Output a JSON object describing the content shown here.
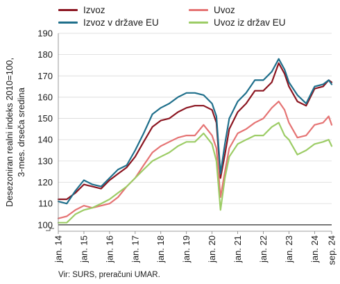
{
  "source": "Vir: SURS, preračuni UMAR.",
  "chart_data": {
    "type": "line",
    "ylabel_lines": [
      "Desezoniran realni indeks 2010=100,",
      "3-mes. drseča sredina"
    ],
    "ylim": [
      97,
      190
    ],
    "yticks": [
      100,
      110,
      120,
      130,
      140,
      150,
      160,
      170,
      180,
      190
    ],
    "y_axis_break": true,
    "reference_line": 100,
    "grid": true,
    "legend": "top, two columns",
    "x_labels": [
      {
        "t": 2014.0,
        "label": "jan. 14"
      },
      {
        "t": 2015.0,
        "label": "jan. 15"
      },
      {
        "t": 2016.0,
        "label": "jan. 16"
      },
      {
        "t": 2017.0,
        "label": "jan. 17"
      },
      {
        "t": 2018.0,
        "label": "jan. 18"
      },
      {
        "t": 2019.0,
        "label": "jan. 19"
      },
      {
        "t": 2020.0,
        "label": "jan. 20"
      },
      {
        "t": 2021.0,
        "label": "jan. 21"
      },
      {
        "t": 2022.0,
        "label": "jan. 22"
      },
      {
        "t": 2023.0,
        "label": "jan. 23"
      },
      {
        "t": 2024.0,
        "label": "jan. 24"
      },
      {
        "t": 2024.667,
        "label": "sep. 24"
      }
    ],
    "xlim": [
      2014.0,
      2024.667
    ],
    "series": [
      {
        "name": "Izvoz",
        "color": "#8b1520",
        "points": [
          [
            2014.0,
            112
          ],
          [
            2014.33,
            112
          ],
          [
            2014.67,
            115
          ],
          [
            2015.0,
            119
          ],
          [
            2015.33,
            118
          ],
          [
            2015.67,
            117
          ],
          [
            2016.0,
            121
          ],
          [
            2016.33,
            124
          ],
          [
            2016.67,
            127
          ],
          [
            2017.0,
            132
          ],
          [
            2017.33,
            139
          ],
          [
            2017.67,
            146
          ],
          [
            2018.0,
            149
          ],
          [
            2018.33,
            150
          ],
          [
            2018.67,
            153
          ],
          [
            2019.0,
            155
          ],
          [
            2019.33,
            156
          ],
          [
            2019.67,
            156
          ],
          [
            2020.0,
            154
          ],
          [
            2020.17,
            148
          ],
          [
            2020.33,
            122
          ],
          [
            2020.5,
            133
          ],
          [
            2020.67,
            145
          ],
          [
            2021.0,
            153
          ],
          [
            2021.33,
            157
          ],
          [
            2021.67,
            163
          ],
          [
            2022.0,
            163
          ],
          [
            2022.33,
            167
          ],
          [
            2022.6,
            176
          ],
          [
            2022.83,
            171
          ],
          [
            2023.0,
            165
          ],
          [
            2023.33,
            158
          ],
          [
            2023.67,
            156
          ],
          [
            2024.0,
            164
          ],
          [
            2024.33,
            165
          ],
          [
            2024.55,
            168
          ],
          [
            2024.667,
            167
          ]
        ]
      },
      {
        "name": "Uvoz",
        "color": "#e57373",
        "points": [
          [
            2014.0,
            103
          ],
          [
            2014.33,
            104
          ],
          [
            2014.67,
            107
          ],
          [
            2015.0,
            109
          ],
          [
            2015.33,
            108
          ],
          [
            2015.67,
            109
          ],
          [
            2016.0,
            110
          ],
          [
            2016.33,
            113
          ],
          [
            2016.67,
            118
          ],
          [
            2017.0,
            122
          ],
          [
            2017.33,
            128
          ],
          [
            2017.67,
            134
          ],
          [
            2018.0,
            137
          ],
          [
            2018.33,
            139
          ],
          [
            2018.67,
            141
          ],
          [
            2019.0,
            142
          ],
          [
            2019.33,
            142
          ],
          [
            2019.67,
            147
          ],
          [
            2020.0,
            142
          ],
          [
            2020.17,
            136
          ],
          [
            2020.33,
            113
          ],
          [
            2020.5,
            125
          ],
          [
            2020.67,
            136
          ],
          [
            2021.0,
            143
          ],
          [
            2021.33,
            145
          ],
          [
            2021.67,
            148
          ],
          [
            2022.0,
            150
          ],
          [
            2022.33,
            155
          ],
          [
            2022.6,
            158
          ],
          [
            2022.83,
            154
          ],
          [
            2023.0,
            148
          ],
          [
            2023.33,
            141
          ],
          [
            2023.67,
            142
          ],
          [
            2024.0,
            147
          ],
          [
            2024.33,
            148
          ],
          [
            2024.55,
            151
          ],
          [
            2024.667,
            147
          ]
        ]
      },
      {
        "name": "Izvoz v države EU",
        "color": "#1f6f8b",
        "points": [
          [
            2014.0,
            111
          ],
          [
            2014.33,
            110
          ],
          [
            2014.67,
            116
          ],
          [
            2015.0,
            121
          ],
          [
            2015.33,
            119
          ],
          [
            2015.67,
            118
          ],
          [
            2016.0,
            122
          ],
          [
            2016.33,
            126
          ],
          [
            2016.67,
            128
          ],
          [
            2017.0,
            135
          ],
          [
            2017.33,
            143
          ],
          [
            2017.67,
            152
          ],
          [
            2018.0,
            155
          ],
          [
            2018.33,
            157
          ],
          [
            2018.67,
            160
          ],
          [
            2019.0,
            162
          ],
          [
            2019.33,
            162
          ],
          [
            2019.67,
            161
          ],
          [
            2020.0,
            157
          ],
          [
            2020.17,
            151
          ],
          [
            2020.33,
            124
          ],
          [
            2020.5,
            138
          ],
          [
            2020.67,
            150
          ],
          [
            2021.0,
            158
          ],
          [
            2021.33,
            162
          ],
          [
            2021.67,
            168
          ],
          [
            2022.0,
            168
          ],
          [
            2022.33,
            172
          ],
          [
            2022.6,
            178
          ],
          [
            2022.83,
            173
          ],
          [
            2023.0,
            167
          ],
          [
            2023.33,
            161
          ],
          [
            2023.67,
            157
          ],
          [
            2024.0,
            165
          ],
          [
            2024.33,
            166
          ],
          [
            2024.55,
            168
          ],
          [
            2024.667,
            166
          ]
        ]
      },
      {
        "name": "Uvoz iz držav EU",
        "color": "#9ccc65",
        "points": [
          [
            2014.0,
            101
          ],
          [
            2014.33,
            101
          ],
          [
            2014.67,
            105
          ],
          [
            2015.0,
            107
          ],
          [
            2015.33,
            108
          ],
          [
            2015.67,
            110
          ],
          [
            2016.0,
            112
          ],
          [
            2016.33,
            115
          ],
          [
            2016.67,
            118
          ],
          [
            2017.0,
            122
          ],
          [
            2017.33,
            126
          ],
          [
            2017.67,
            130
          ],
          [
            2018.0,
            132
          ],
          [
            2018.33,
            134
          ],
          [
            2018.67,
            137
          ],
          [
            2019.0,
            139
          ],
          [
            2019.33,
            139
          ],
          [
            2019.67,
            143
          ],
          [
            2020.0,
            138
          ],
          [
            2020.17,
            130
          ],
          [
            2020.33,
            107
          ],
          [
            2020.5,
            122
          ],
          [
            2020.67,
            132
          ],
          [
            2021.0,
            138
          ],
          [
            2021.33,
            140
          ],
          [
            2021.67,
            142
          ],
          [
            2022.0,
            142
          ],
          [
            2022.33,
            146
          ],
          [
            2022.6,
            148
          ],
          [
            2022.83,
            142
          ],
          [
            2023.0,
            140
          ],
          [
            2023.33,
            133
          ],
          [
            2023.67,
            135
          ],
          [
            2024.0,
            138
          ],
          [
            2024.33,
            139
          ],
          [
            2024.55,
            140
          ],
          [
            2024.667,
            137
          ]
        ]
      }
    ]
  }
}
